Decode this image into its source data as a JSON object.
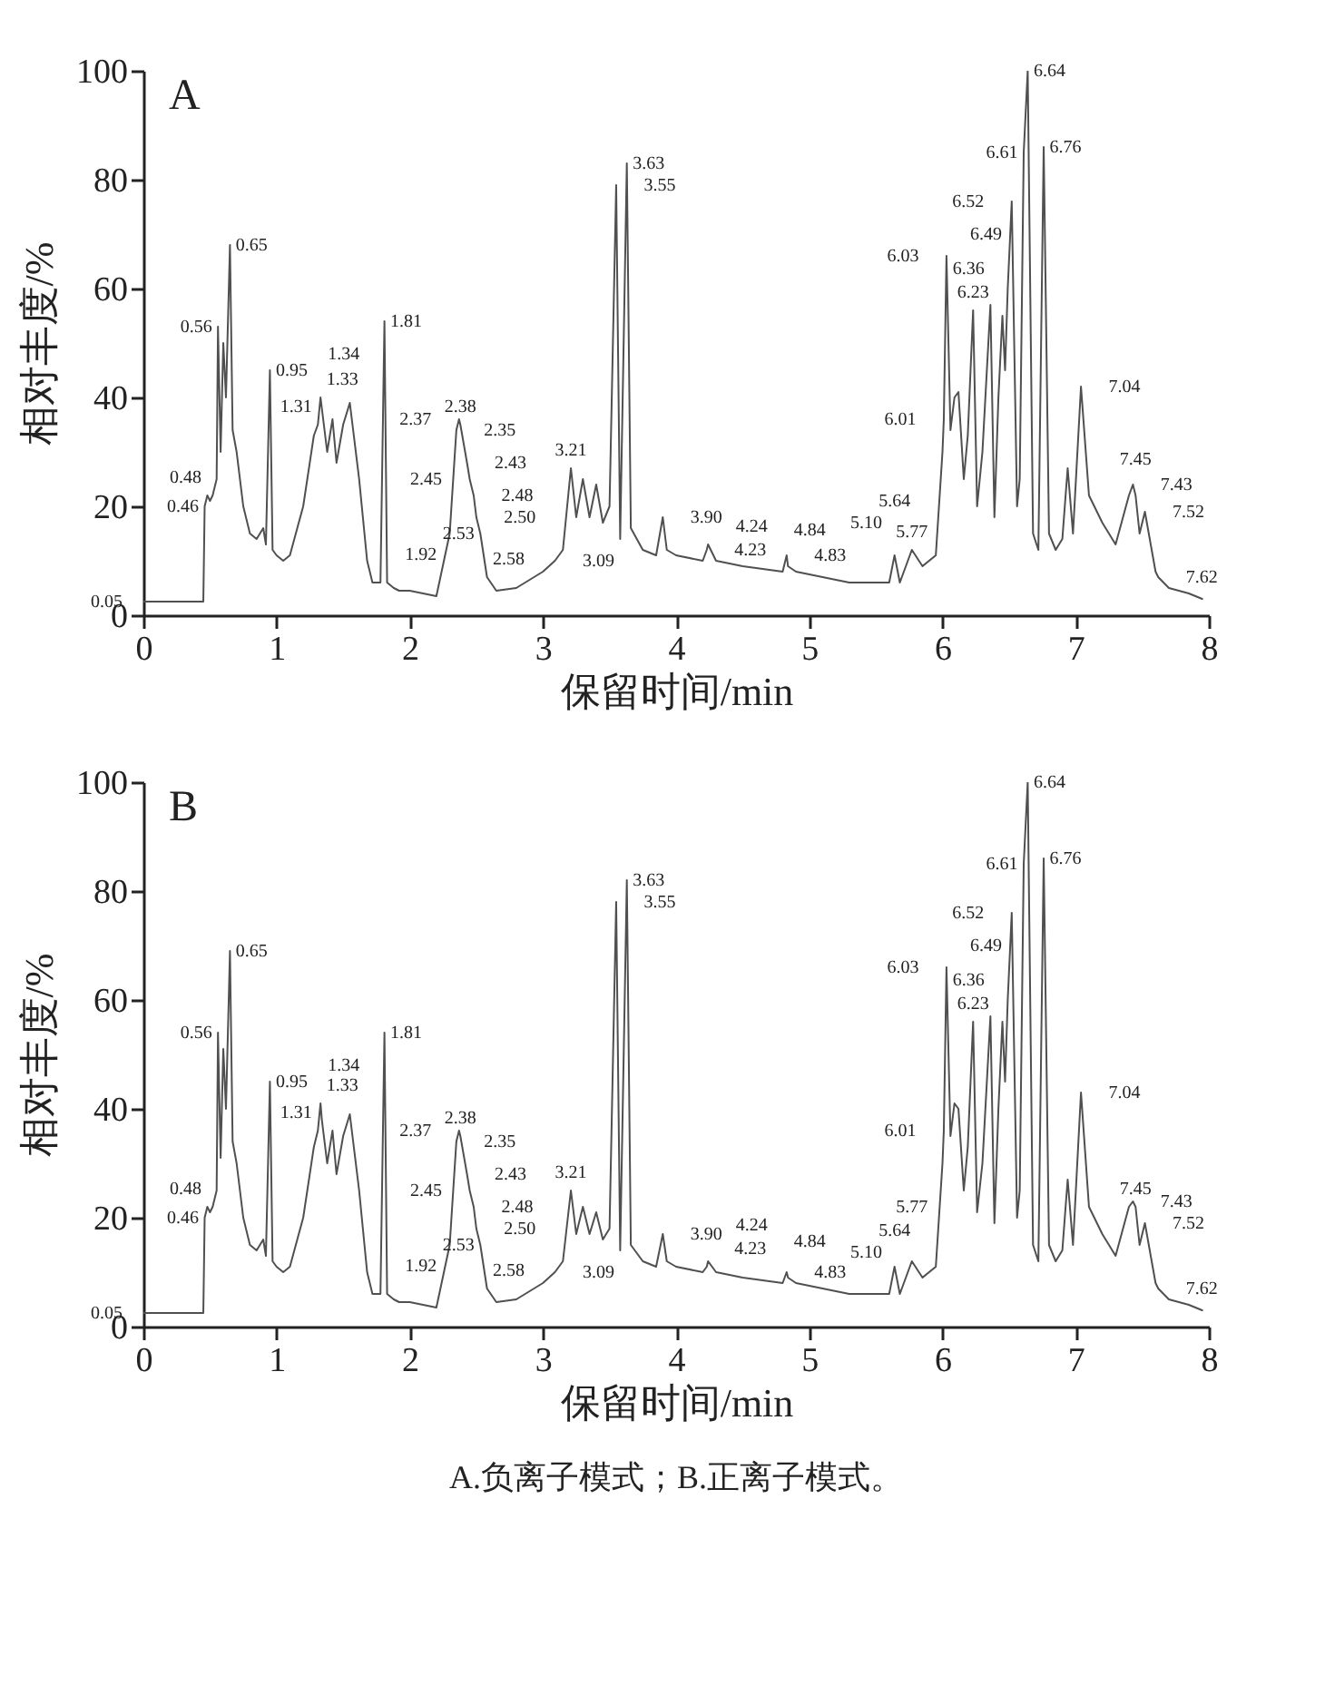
{
  "chart_data": [
    {
      "type": "line",
      "title": "A",
      "xlabel": "保留时间/min",
      "ylabel": "相对丰度/%",
      "xlim": [
        0,
        8
      ],
      "ylim": [
        0,
        100
      ],
      "xticks": [
        0,
        1,
        2,
        3,
        4,
        5,
        6,
        7,
        8
      ],
      "yticks": [
        0,
        20,
        40,
        60,
        80,
        100
      ],
      "series": [
        {
          "color": "#505050",
          "x": [
            0,
            0.3,
            0.45,
            0.46,
            0.48,
            0.5,
            0.52,
            0.55,
            0.56,
            0.58,
            0.6,
            0.62,
            0.65,
            0.67,
            0.7,
            0.75,
            0.8,
            0.85,
            0.9,
            0.92,
            0.95,
            0.97,
            1.0,
            1.05,
            1.1,
            1.2,
            1.28,
            1.31,
            1.33,
            1.34,
            1.38,
            1.42,
            1.45,
            1.5,
            1.55,
            1.58,
            1.62,
            1.68,
            1.72,
            1.78,
            1.81,
            1.83,
            1.88,
            1.92,
            2.0,
            2.2,
            2.3,
            2.35,
            2.37,
            2.38,
            2.43,
            2.45,
            2.48,
            2.5,
            2.53,
            2.58,
            2.65,
            2.8,
            3.0,
            3.09,
            3.15,
            3.21,
            3.25,
            3.3,
            3.35,
            3.4,
            3.45,
            3.5,
            3.55,
            3.58,
            3.63,
            3.66,
            3.75,
            3.85,
            3.9,
            3.93,
            4.0,
            4.2,
            4.23,
            4.24,
            4.3,
            4.5,
            4.8,
            4.83,
            4.84,
            4.9,
            5.1,
            5.3,
            5.5,
            5.6,
            5.64,
            5.68,
            5.77,
            5.85,
            5.95,
            6.0,
            6.01,
            6.03,
            6.06,
            6.09,
            6.12,
            6.16,
            6.19,
            6.23,
            6.26,
            6.3,
            6.36,
            6.39,
            6.42,
            6.45,
            6.47,
            6.49,
            6.52,
            6.56,
            6.58,
            6.61,
            6.64,
            6.68,
            6.72,
            6.76,
            6.8,
            6.85,
            6.9,
            6.94,
            6.98,
            7.04,
            7.1,
            7.2,
            7.3,
            7.4,
            7.43,
            7.45,
            7.48,
            7.52,
            7.6,
            7.62,
            7.7,
            7.85,
            7.95
          ],
          "values": [
            2.5,
            2.5,
            2.5,
            20,
            22,
            21,
            22,
            25,
            53,
            30,
            50,
            40,
            68,
            34,
            30,
            20,
            15,
            14,
            16,
            13,
            45,
            12,
            11,
            10,
            11,
            20,
            33,
            35,
            40,
            38,
            30,
            36,
            28,
            35,
            39,
            33,
            25,
            10,
            6,
            6,
            54,
            6,
            5,
            4.5,
            4.5,
            3.5,
            15,
            34,
            36,
            35,
            28,
            25,
            22,
            18,
            15,
            7,
            4.5,
            5,
            8,
            10,
            12,
            27,
            18,
            25,
            18,
            24,
            17,
            20,
            79,
            14,
            83,
            16,
            12,
            11,
            18,
            12,
            11,
            10,
            12,
            13,
            10,
            9,
            8,
            11,
            9,
            8,
            7,
            6,
            6,
            6,
            11,
            6,
            12,
            9,
            11,
            30,
            36,
            66,
            34,
            40,
            41,
            25,
            33,
            56,
            20,
            30,
            57,
            18,
            40,
            55,
            45,
            60,
            76,
            20,
            25,
            85,
            100,
            15,
            12,
            86,
            15,
            12,
            14,
            27,
            15,
            42,
            22,
            17,
            13,
            22,
            24,
            22,
            15,
            19,
            8,
            7,
            5,
            4,
            3
          ]
        }
      ],
      "annotations": [
        {
          "text": "0.05",
          "x": 0.05,
          "y": 2.5
        },
        {
          "text": "0.46",
          "x": 0.46,
          "y": 20
        },
        {
          "text": "0.48",
          "x": 0.48,
          "y": 22
        },
        {
          "text": "0.56",
          "x": 0.56,
          "y": 53
        },
        {
          "text": "0.65",
          "x": 0.65,
          "y": 68
        },
        {
          "text": "0.95",
          "x": 0.95,
          "y": 45
        },
        {
          "text": "1.31",
          "x": 1.31,
          "y": 35
        },
        {
          "text": "1.33",
          "x": 1.33,
          "y": 40
        },
        {
          "text": "1.34",
          "x": 1.34,
          "y": 38
        },
        {
          "text": "1.81",
          "x": 1.81,
          "y": 54
        },
        {
          "text": "1.92",
          "x": 1.92,
          "y": 4.5
        },
        {
          "text": "2.35",
          "x": 2.35,
          "y": 34
        },
        {
          "text": "2.37",
          "x": 2.37,
          "y": 36
        },
        {
          "text": "2.38",
          "x": 2.38,
          "y": 35
        },
        {
          "text": "2.43",
          "x": 2.43,
          "y": 28
        },
        {
          "text": "2.45",
          "x": 2.45,
          "y": 25
        },
        {
          "text": "2.48",
          "x": 2.48,
          "y": 22
        },
        {
          "text": "2.50",
          "x": 2.5,
          "y": 18
        },
        {
          "text": "2.53",
          "x": 2.53,
          "y": 15
        },
        {
          "text": "2.58",
          "x": 2.58,
          "y": 7
        },
        {
          "text": "3.09",
          "x": 3.09,
          "y": 10
        },
        {
          "text": "3.21",
          "x": 3.21,
          "y": 27
        },
        {
          "text": "3.55",
          "x": 3.55,
          "y": 79
        },
        {
          "text": "3.63",
          "x": 3.63,
          "y": 83
        },
        {
          "text": "3.90",
          "x": 3.9,
          "y": 18
        },
        {
          "text": "4.23",
          "x": 4.23,
          "y": 12
        },
        {
          "text": "4.24",
          "x": 4.24,
          "y": 13
        },
        {
          "text": "4.83",
          "x": 4.83,
          "y": 11
        },
        {
          "text": "4.84",
          "x": 4.84,
          "y": 9
        },
        {
          "text": "5.10",
          "x": 5.1,
          "y": 7
        },
        {
          "text": "5.64",
          "x": 5.64,
          "y": 11
        },
        {
          "text": "5.77",
          "x": 5.77,
          "y": 12
        },
        {
          "text": "6.01",
          "x": 6.01,
          "y": 36
        },
        {
          "text": "6.03",
          "x": 6.03,
          "y": 66
        },
        {
          "text": "6.23",
          "x": 6.23,
          "y": 56
        },
        {
          "text": "6.36",
          "x": 6.36,
          "y": 57
        },
        {
          "text": "6.49",
          "x": 6.49,
          "y": 60
        },
        {
          "text": "6.52",
          "x": 6.52,
          "y": 76
        },
        {
          "text": "6.61",
          "x": 6.61,
          "y": 85
        },
        {
          "text": "6.64",
          "x": 6.64,
          "y": 100
        },
        {
          "text": "6.76",
          "x": 6.76,
          "y": 86
        },
        {
          "text": "7.04",
          "x": 7.04,
          "y": 42
        },
        {
          "text": "7.43",
          "x": 7.43,
          "y": 24
        },
        {
          "text": "7.45",
          "x": 7.45,
          "y": 22
        },
        {
          "text": "7.52",
          "x": 7.52,
          "y": 19
        },
        {
          "text": "7.62",
          "x": 7.62,
          "y": 7
        }
      ]
    },
    {
      "type": "line",
      "title": "B",
      "xlabel": "保留时间/min",
      "ylabel": "相对丰度/%",
      "xlim": [
        0,
        8
      ],
      "ylim": [
        0,
        100
      ],
      "xticks": [
        0,
        1,
        2,
        3,
        4,
        5,
        6,
        7,
        8
      ],
      "yticks": [
        0,
        20,
        40,
        60,
        80,
        100
      ],
      "series": [
        {
          "color": "#505050",
          "x": [
            0,
            0.3,
            0.45,
            0.46,
            0.48,
            0.5,
            0.52,
            0.55,
            0.56,
            0.58,
            0.6,
            0.62,
            0.65,
            0.67,
            0.7,
            0.75,
            0.8,
            0.85,
            0.9,
            0.92,
            0.95,
            0.97,
            1.0,
            1.05,
            1.1,
            1.2,
            1.28,
            1.31,
            1.33,
            1.34,
            1.38,
            1.42,
            1.45,
            1.5,
            1.55,
            1.58,
            1.62,
            1.68,
            1.72,
            1.78,
            1.81,
            1.83,
            1.88,
            1.92,
            2.0,
            2.2,
            2.3,
            2.35,
            2.37,
            2.38,
            2.43,
            2.45,
            2.48,
            2.5,
            2.53,
            2.58,
            2.65,
            2.8,
            3.0,
            3.09,
            3.15,
            3.21,
            3.25,
            3.3,
            3.35,
            3.4,
            3.45,
            3.5,
            3.55,
            3.58,
            3.63,
            3.66,
            3.75,
            3.85,
            3.9,
            3.93,
            4.0,
            4.2,
            4.23,
            4.24,
            4.3,
            4.5,
            4.8,
            4.83,
            4.84,
            4.9,
            5.1,
            5.3,
            5.5,
            5.6,
            5.64,
            5.68,
            5.77,
            5.85,
            5.95,
            6.0,
            6.01,
            6.03,
            6.06,
            6.09,
            6.12,
            6.16,
            6.19,
            6.23,
            6.26,
            6.3,
            6.36,
            6.39,
            6.42,
            6.45,
            6.47,
            6.49,
            6.52,
            6.56,
            6.58,
            6.61,
            6.64,
            6.68,
            6.72,
            6.76,
            6.8,
            6.85,
            6.9,
            6.94,
            6.98,
            7.04,
            7.1,
            7.2,
            7.3,
            7.4,
            7.43,
            7.45,
            7.48,
            7.52,
            7.6,
            7.62,
            7.7,
            7.85,
            7.95
          ],
          "values": [
            2.5,
            2.5,
            2.5,
            20,
            22,
            21,
            22,
            25,
            54,
            31,
            51,
            40,
            69,
            34,
            30,
            20,
            15,
            14,
            16,
            13,
            45,
            12,
            11,
            10,
            11,
            20,
            33,
            36,
            41,
            38,
            30,
            36,
            28,
            35,
            39,
            33,
            25,
            10,
            6,
            6,
            54,
            6,
            5,
            4.5,
            4.5,
            3.5,
            15,
            34,
            36,
            35,
            28,
            25,
            22,
            18,
            15,
            7,
            4.5,
            5,
            8,
            10,
            12,
            25,
            17,
            22,
            17,
            21,
            16,
            18,
            78,
            14,
            82,
            15,
            12,
            11,
            17,
            12,
            11,
            10,
            11,
            12,
            10,
            9,
            8,
            10,
            9,
            8,
            7,
            6,
            6,
            6,
            11,
            6,
            12,
            9,
            11,
            30,
            36,
            66,
            35,
            41,
            40,
            25,
            33,
            56,
            21,
            30,
            57,
            19,
            40,
            56,
            45,
            60,
            76,
            20,
            25,
            85,
            100,
            15,
            12,
            86,
            15,
            12,
            14,
            27,
            15,
            43,
            22,
            17,
            13,
            22,
            23,
            22,
            15,
            19,
            8,
            7,
            5,
            4,
            3
          ]
        }
      ],
      "annotations": [
        "A.负离子模式；B.正离子模式。",
        {
          "text": "0.05",
          "x": 0.05,
          "y": 2.5
        },
        {
          "text": "0.46",
          "x": 0.46,
          "y": 20
        },
        {
          "text": "0.48",
          "x": 0.48,
          "y": 22
        },
        {
          "text": "0.56",
          "x": 0.56,
          "y": 54
        },
        {
          "text": "0.65",
          "x": 0.65,
          "y": 69
        },
        {
          "text": "0.95",
          "x": 0.95,
          "y": 45
        },
        {
          "text": "1.31",
          "x": 1.31,
          "y": 36
        },
        {
          "text": "1.33",
          "x": 1.33,
          "y": 41
        },
        {
          "text": "1.34",
          "x": 1.34,
          "y": 38
        },
        {
          "text": "1.81",
          "x": 1.81,
          "y": 54
        },
        {
          "text": "1.92",
          "x": 1.92,
          "y": 4.5
        },
        {
          "text": "2.35",
          "x": 2.35,
          "y": 34
        },
        {
          "text": "2.37",
          "x": 2.37,
          "y": 36
        },
        {
          "text": "2.38",
          "x": 2.38,
          "y": 35
        },
        {
          "text": "2.43",
          "x": 2.43,
          "y": 28
        },
        {
          "text": "2.45",
          "x": 2.45,
          "y": 25
        },
        {
          "text": "2.48",
          "x": 2.48,
          "y": 22
        },
        {
          "text": "2.50",
          "x": 2.5,
          "y": 18
        },
        {
          "text": "2.53",
          "x": 2.53,
          "y": 15
        },
        {
          "text": "2.58",
          "x": 2.58,
          "y": 7
        },
        {
          "text": "3.09",
          "x": 3.09,
          "y": 10
        },
        {
          "text": "3.21",
          "x": 3.21,
          "y": 25
        },
        {
          "text": "3.55",
          "x": 3.55,
          "y": 78
        },
        {
          "text": "3.63",
          "x": 3.63,
          "y": 82
        },
        {
          "text": "3.90",
          "x": 3.9,
          "y": 17
        },
        {
          "text": "4.23",
          "x": 4.23,
          "y": 11
        },
        {
          "text": "4.24",
          "x": 4.24,
          "y": 12
        },
        {
          "text": "4.83",
          "x": 4.83,
          "y": 10
        },
        {
          "text": "4.84",
          "x": 4.84,
          "y": 9
        },
        {
          "text": "5.10",
          "x": 5.1,
          "y": 7
        },
        {
          "text": "5.64",
          "x": 5.64,
          "y": 11
        },
        {
          "text": "5.77",
          "x": 5.77,
          "y": 12
        },
        {
          "text": "6.01",
          "x": 6.01,
          "y": 36
        },
        {
          "text": "6.03",
          "x": 6.03,
          "y": 66
        },
        {
          "text": "6.23",
          "x": 6.23,
          "y": 56
        },
        {
          "text": "6.36",
          "x": 6.36,
          "y": 57
        },
        {
          "text": "6.49",
          "x": 6.49,
          "y": 60
        },
        {
          "text": "6.52",
          "x": 6.52,
          "y": 76
        },
        {
          "text": "6.61",
          "x": 6.61,
          "y": 85
        },
        {
          "text": "6.64",
          "x": 6.64,
          "y": 100
        },
        {
          "text": "6.76",
          "x": 6.76,
          "y": 86
        },
        {
          "text": "7.04",
          "x": 7.04,
          "y": 43
        },
        {
          "text": "7.43",
          "x": 7.43,
          "y": 23
        },
        {
          "text": "7.45",
          "x": 7.45,
          "y": 22
        },
        {
          "text": "7.52",
          "x": 7.52,
          "y": 19
        },
        {
          "text": "7.62",
          "x": 7.62,
          "y": 7
        }
      ]
    }
  ]
}
